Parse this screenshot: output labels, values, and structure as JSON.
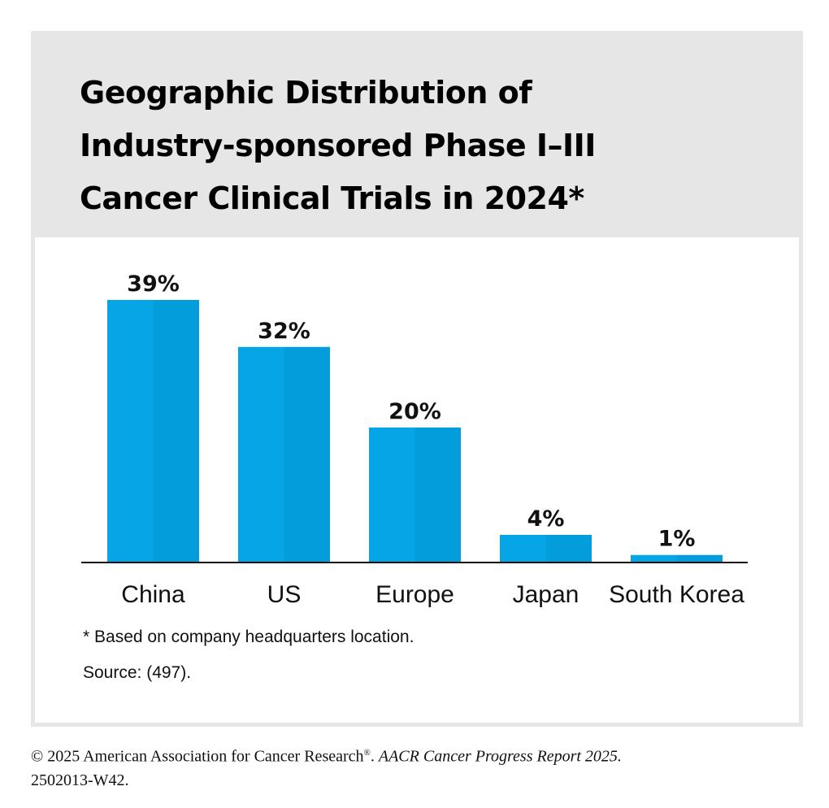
{
  "title_lines": [
    "Geographic Distribution of",
    "Industry-sponsored Phase I–III",
    "Cancer Clinical Trials in 2024*"
  ],
  "footnotes": {
    "note": "* Based on company headquarters location.",
    "source": "Source: (497)."
  },
  "copyright": {
    "text": "© 2025 American Association for Cancer Research",
    "reg": "®",
    "sep": ". ",
    "report": "AACR Cancer Progress Report 2025.",
    "code": "2502013-W42."
  },
  "colors": {
    "bar_left": "#06a6e6",
    "bar_right": "#039ddc",
    "axis": "#111111"
  },
  "chart_data": {
    "type": "bar",
    "title": "Geographic Distribution of Industry-sponsored Phase I–III Cancer Clinical Trials in 2024*",
    "categories": [
      "China",
      "US",
      "Europe",
      "Japan",
      "South Korea"
    ],
    "values": [
      39,
      32,
      20,
      4,
      1
    ],
    "value_labels": [
      "39%",
      "32%",
      "20%",
      "4%",
      "1%"
    ],
    "unit": "%",
    "xlabel": "",
    "ylabel": "",
    "ylim": [
      0,
      39
    ],
    "grid": false,
    "legend": "none"
  }
}
